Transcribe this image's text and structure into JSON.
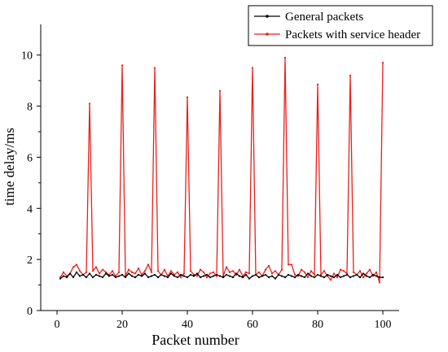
{
  "chart_data": {
    "type": "line",
    "xlabel": "Packet number",
    "ylabel": "time delay/ms",
    "xlim": [
      -5,
      105
    ],
    "ylim": [
      0,
      11.2
    ],
    "xticks": [
      0,
      20,
      40,
      60,
      80,
      100
    ],
    "yticks": [
      0,
      2,
      4,
      6,
      8,
      10
    ],
    "grid": false,
    "legend_position": "top-right",
    "x": [
      1,
      2,
      3,
      4,
      5,
      6,
      7,
      8,
      9,
      10,
      11,
      12,
      13,
      14,
      15,
      16,
      17,
      18,
      19,
      20,
      21,
      22,
      23,
      24,
      25,
      26,
      27,
      28,
      29,
      30,
      31,
      32,
      33,
      34,
      35,
      36,
      37,
      38,
      39,
      40,
      41,
      42,
      43,
      44,
      45,
      46,
      47,
      48,
      49,
      50,
      51,
      52,
      53,
      54,
      55,
      56,
      57,
      58,
      59,
      60,
      61,
      62,
      63,
      64,
      65,
      66,
      67,
      68,
      69,
      70,
      71,
      72,
      73,
      74,
      75,
      76,
      77,
      78,
      79,
      80,
      81,
      82,
      83,
      84,
      85,
      86,
      87,
      88,
      89,
      90,
      91,
      92,
      93,
      94,
      95,
      96,
      97,
      98,
      99,
      100
    ],
    "series": [
      {
        "name": "General packets",
        "color": "#000000",
        "values": [
          1.25,
          1.35,
          1.3,
          1.45,
          1.3,
          1.5,
          1.35,
          1.4,
          1.3,
          1.45,
          1.3,
          1.4,
          1.35,
          1.3,
          1.45,
          1.35,
          1.4,
          1.3,
          1.35,
          1.4,
          1.3,
          1.45,
          1.35,
          1.3,
          1.4,
          1.35,
          1.45,
          1.3,
          1.35,
          1.4,
          1.3,
          1.4,
          1.35,
          1.3,
          1.45,
          1.35,
          1.3,
          1.4,
          1.35,
          1.3,
          1.4,
          1.35,
          1.45,
          1.3,
          1.35,
          1.4,
          1.3,
          1.35,
          1.4,
          1.35,
          1.3,
          1.4,
          1.35,
          1.3,
          1.45,
          1.35,
          1.3,
          1.4,
          1.25,
          1.35,
          1.4,
          1.3,
          1.35,
          1.4,
          1.3,
          1.35,
          1.25,
          1.4,
          1.35,
          1.3,
          1.4,
          1.35,
          1.3,
          1.4,
          1.35,
          1.3,
          1.45,
          1.35,
          1.3,
          1.4,
          1.35,
          1.3,
          1.4,
          1.35,
          1.3,
          1.4,
          1.3,
          1.35,
          1.4,
          1.3,
          1.35,
          1.4,
          1.3,
          1.45,
          1.35,
          1.3,
          1.4,
          1.35,
          1.3,
          1.3
        ]
      },
      {
        "name": "Packets with service header",
        "color": "#e8201c",
        "values": [
          1.3,
          1.5,
          1.35,
          1.45,
          1.7,
          1.8,
          1.55,
          1.4,
          1.5,
          8.1,
          1.55,
          1.7,
          1.45,
          1.6,
          1.5,
          1.4,
          1.55,
          1.35,
          1.5,
          9.6,
          1.35,
          1.6,
          1.5,
          1.45,
          1.65,
          1.4,
          1.55,
          1.8,
          1.5,
          9.5,
          1.55,
          1.4,
          1.6,
          1.35,
          1.55,
          1.4,
          1.5,
          1.3,
          1.45,
          8.35,
          1.55,
          1.4,
          1.35,
          1.6,
          1.5,
          1.3,
          1.45,
          1.5,
          1.35,
          8.6,
          1.35,
          1.7,
          1.5,
          1.55,
          1.4,
          1.6,
          1.35,
          1.5,
          1.45,
          9.5,
          1.4,
          1.5,
          1.35,
          1.6,
          1.75,
          1.45,
          1.55,
          1.4,
          1.6,
          9.9,
          1.8,
          1.8,
          1.4,
          1.35,
          1.6,
          1.5,
          1.3,
          1.55,
          1.4,
          8.85,
          1.4,
          1.55,
          1.35,
          1.2,
          1.45,
          1.3,
          1.6,
          1.55,
          1.45,
          9.2,
          1.5,
          1.4,
          1.55,
          1.3,
          1.45,
          1.6,
          1.35,
          1.5,
          1.1,
          9.7
        ]
      }
    ]
  }
}
